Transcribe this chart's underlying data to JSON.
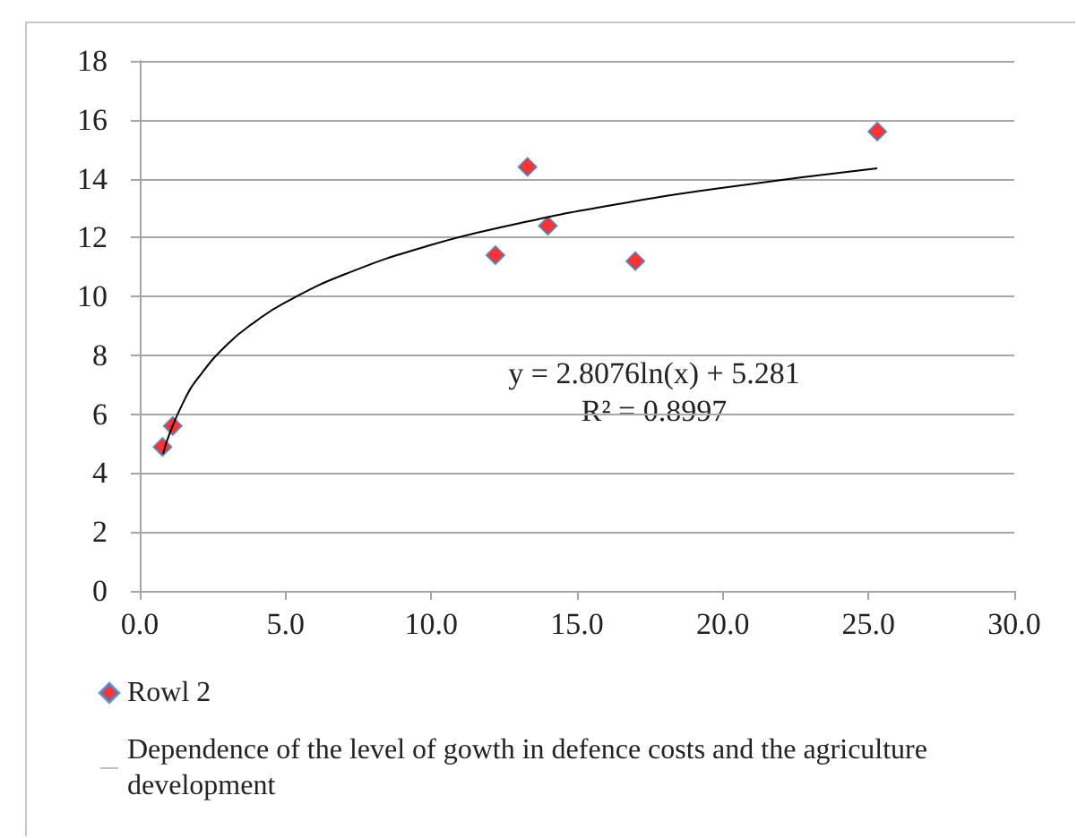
{
  "chart_data": {
    "type": "scatter",
    "series": [
      {
        "name": "Rowl 2",
        "marker": "diamond",
        "color": "#ff0000",
        "x": [
          0.78,
          1.13,
          12.2,
          13.3,
          14.0,
          17.0,
          25.3
        ],
        "values": [
          4.89,
          5.6,
          11.4,
          14.4,
          12.4,
          11.2,
          15.6
        ]
      },
      {
        "name": "Dependence of the level of gowth in defence costs and the agriculture development",
        "type": "line",
        "marker": "none",
        "color": "#000000",
        "x": [
          0.8,
          1,
          1.5,
          2,
          3,
          4,
          5,
          7,
          10,
          13,
          16,
          20,
          25.3
        ],
        "values": [
          4.65,
          5.28,
          6.42,
          7.23,
          8.37,
          9.17,
          9.8,
          10.74,
          11.75,
          12.48,
          13.07,
          13.69,
          14.35
        ]
      }
    ],
    "xlim": [
      0,
      30
    ],
    "xticks": [
      {
        "value": 0,
        "label": "0.0"
      },
      {
        "value": 5,
        "label": "5.0"
      },
      {
        "value": 10,
        "label": "10.0"
      },
      {
        "value": 15,
        "label": "15.0"
      },
      {
        "value": 20,
        "label": "20.0"
      },
      {
        "value": 25,
        "label": "25.0"
      },
      {
        "value": 30,
        "label": "30.0"
      }
    ],
    "ylim": [
      0,
      18
    ],
    "yticks": [
      0,
      2,
      4,
      6,
      8,
      10,
      12,
      14,
      16,
      18
    ],
    "grid": "y",
    "legend": "bottom left",
    "annotations": [
      "y = 2.8076ln(x) + 5.281",
      "R² = 0.8997"
    ]
  }
}
